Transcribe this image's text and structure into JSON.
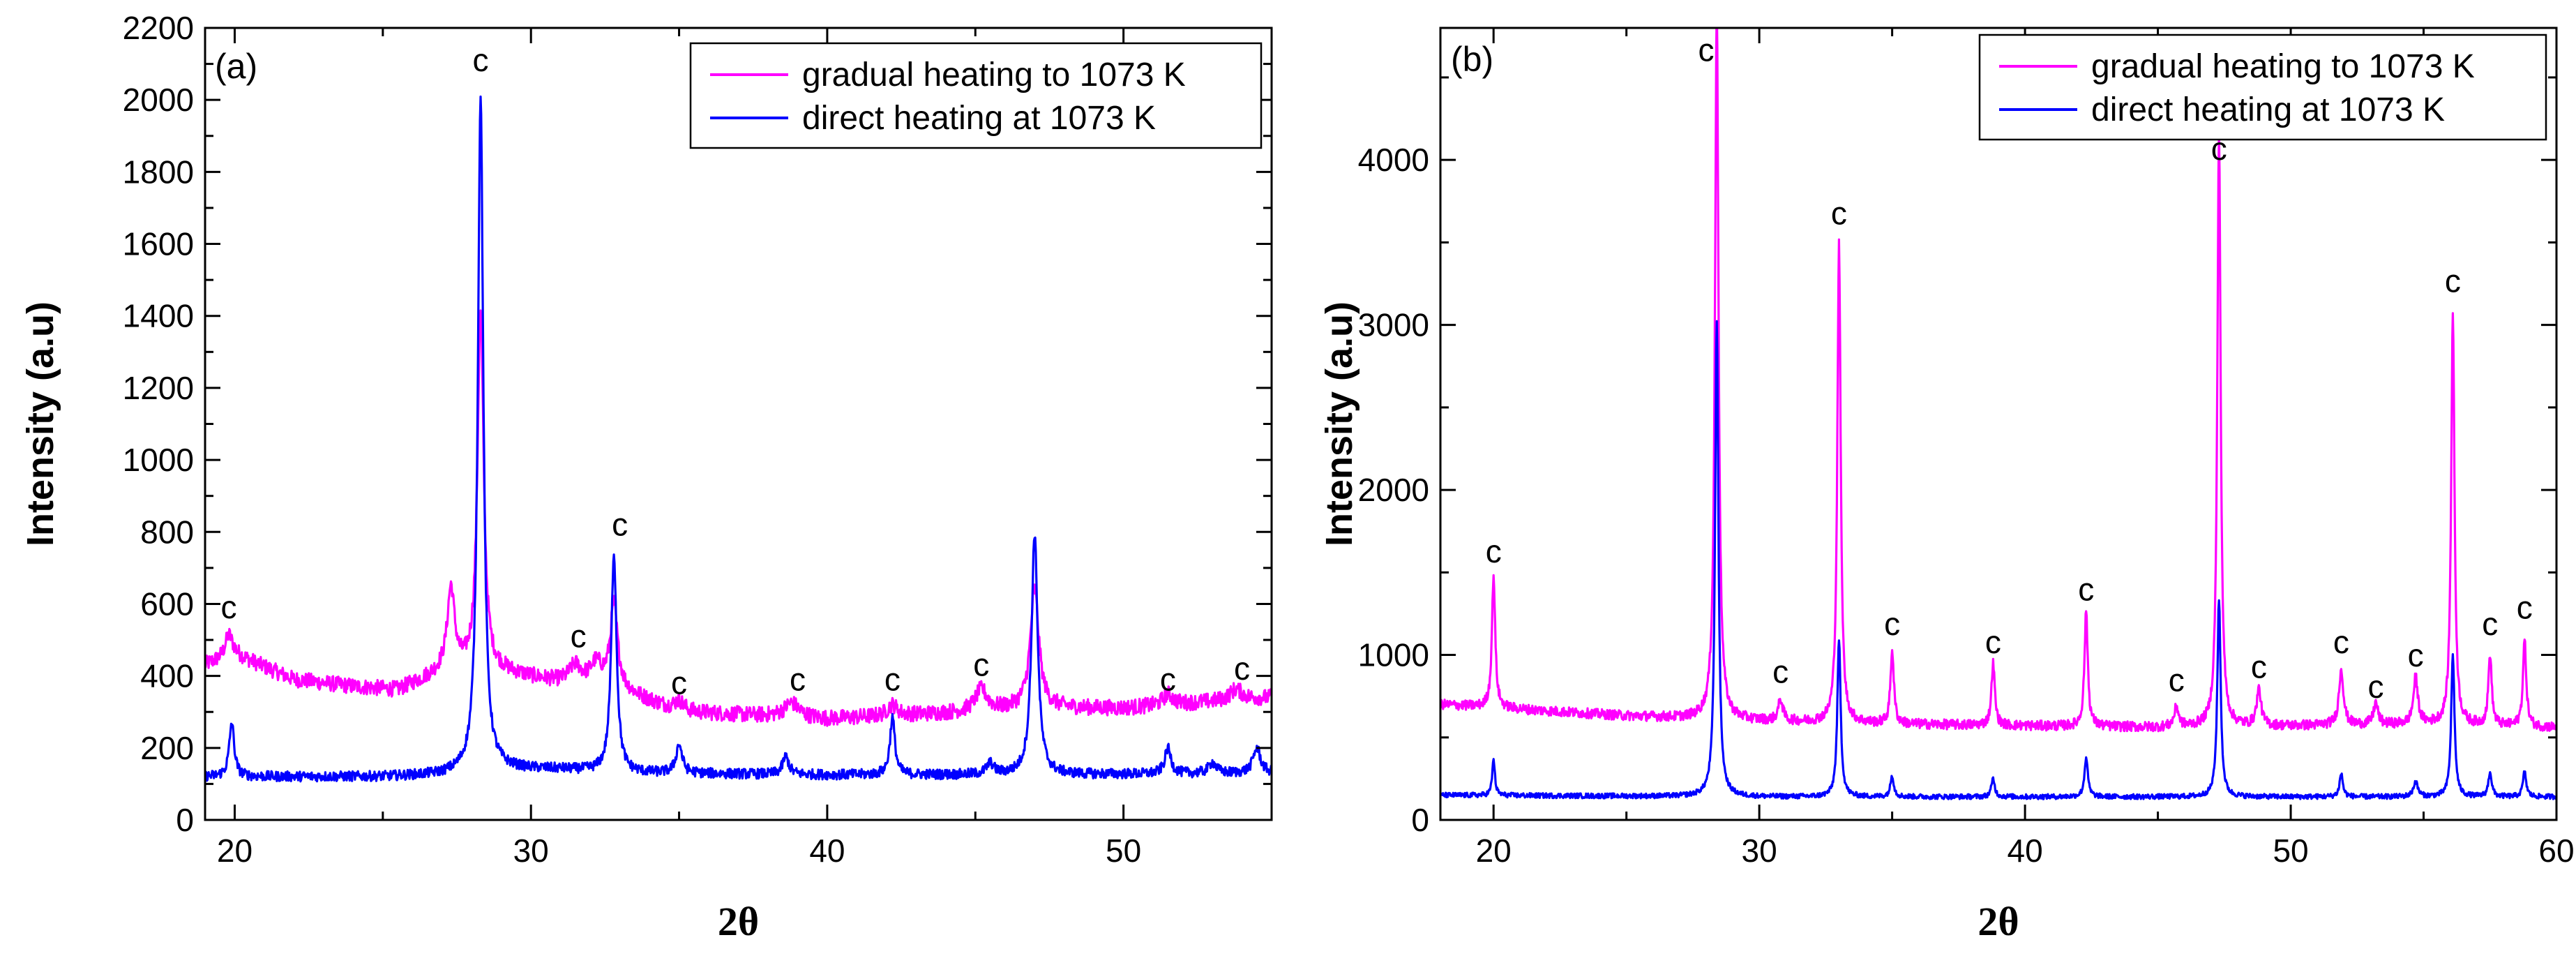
{
  "chart_data": [
    {
      "type": "line",
      "panel_label": "(a)",
      "xlabel": "2θ",
      "ylabel": "Intensity (a.u)",
      "xlim": [
        19,
        55
      ],
      "ylim": [
        0,
        2200
      ],
      "xticks": [
        20,
        30,
        40,
        50
      ],
      "yticks": [
        0,
        200,
        400,
        600,
        800,
        1000,
        1200,
        1400,
        1600,
        1800,
        2000,
        2200
      ],
      "legend_position": "top-right",
      "series": [
        {
          "name": "gradual heating to 1073 K",
          "color": "#ff00ff",
          "baseline": [
            [
              19,
              430
            ],
            [
              20,
              460
            ],
            [
              22,
              390
            ],
            [
              24,
              370
            ],
            [
              25.5,
              360
            ],
            [
              27,
              410
            ],
            [
              29,
              410
            ],
            [
              31,
              380
            ],
            [
              33,
              360
            ],
            [
              35,
              300
            ],
            [
              40,
              280
            ],
            [
              45,
              300
            ],
            [
              47,
              310
            ],
            [
              50,
              310
            ],
            [
              55,
              340
            ]
          ],
          "peaks": [
            [
              19.8,
              60,
              0.3
            ],
            [
              27.3,
              230,
              0.3
            ],
            [
              28.3,
              1000,
              0.25
            ],
            [
              31.5,
              50,
              0.5
            ],
            [
              32.2,
              60,
              0.5
            ],
            [
              32.8,
              230,
              0.3
            ],
            [
              35,
              30,
              0.4
            ],
            [
              38.8,
              40,
              0.6
            ],
            [
              42.2,
              30,
              0.4
            ],
            [
              45.2,
              60,
              0.5
            ],
            [
              47,
              330,
              0.35
            ],
            [
              51.5,
              30,
              0.4
            ],
            [
              53.8,
              30,
              0.5
            ]
          ],
          "noise": 22
        },
        {
          "name": "direct heating at 1073 K",
          "color": "#0000ff",
          "baseline": [
            [
              19,
              120
            ],
            [
              25,
              120
            ],
            [
              27,
              125
            ],
            [
              29,
              140
            ],
            [
              31,
              140
            ],
            [
              33,
              130
            ],
            [
              40,
              125
            ],
            [
              47,
              125
            ],
            [
              55,
              130
            ]
          ],
          "peaks": [
            [
              19.9,
              150,
              0.2
            ],
            [
              28.3,
              1880,
              0.22
            ],
            [
              32.8,
              610,
              0.22
            ],
            [
              35,
              80,
              0.25
            ],
            [
              38.6,
              50,
              0.25
            ],
            [
              42.2,
              160,
              0.2
            ],
            [
              45.5,
              30,
              0.3
            ],
            [
              47,
              670,
              0.25
            ],
            [
              51.5,
              70,
              0.25
            ],
            [
              53,
              30,
              0.3
            ],
            [
              54.5,
              70,
              0.3
            ]
          ],
          "noise": 14
        }
      ],
      "annotations": [
        {
          "text": "c",
          "x": 19.8,
          "y": 560
        },
        {
          "text": "c",
          "x": 28.3,
          "y": 2080
        },
        {
          "text": "c",
          "x": 31.6,
          "y": 480
        },
        {
          "text": "c",
          "x": 33.0,
          "y": 790
        },
        {
          "text": "c",
          "x": 35.0,
          "y": 350
        },
        {
          "text": "c",
          "x": 39.0,
          "y": 360
        },
        {
          "text": "c",
          "x": 42.2,
          "y": 360
        },
        {
          "text": "c",
          "x": 45.2,
          "y": 400
        },
        {
          "text": "c",
          "x": 51.5,
          "y": 360
        },
        {
          "text": "c",
          "x": 54.0,
          "y": 390
        }
      ]
    },
    {
      "type": "line",
      "panel_label": "(b)",
      "xlabel": "2θ",
      "ylabel": "Intensity (a.u)",
      "xlim": [
        18,
        60
      ],
      "ylim": [
        0,
        4800
      ],
      "xticks": [
        20,
        30,
        40,
        50,
        60
      ],
      "yticks": [
        0,
        1000,
        2000,
        3000,
        4000
      ],
      "legend_position": "top-right",
      "series": [
        {
          "name": "gradual heating to 1073 K",
          "color": "#ff00ff",
          "baseline": [
            [
              18,
              700
            ],
            [
              25,
              630
            ],
            [
              30,
              600
            ],
            [
              35,
              580
            ],
            [
              40,
              570
            ],
            [
              45,
              560
            ],
            [
              50,
              570
            ],
            [
              55,
              580
            ],
            [
              60,
              560
            ]
          ],
          "peaks": [
            [
              20,
              800,
              0.15
            ],
            [
              28.4,
              4300,
              0.16
            ],
            [
              30.8,
              130,
              0.2
            ],
            [
              33,
              2900,
              0.15
            ],
            [
              35,
              450,
              0.15
            ],
            [
              38.8,
              380,
              0.15
            ],
            [
              42.3,
              700,
              0.15
            ],
            [
              45.7,
              120,
              0.2
            ],
            [
              47.3,
              3600,
              0.15
            ],
            [
              48.8,
              220,
              0.2
            ],
            [
              51.9,
              340,
              0.2
            ],
            [
              53.2,
              130,
              0.2
            ],
            [
              54.7,
              280,
              0.2
            ],
            [
              56.1,
              2500,
              0.15
            ],
            [
              57.5,
              430,
              0.15
            ],
            [
              58.8,
              520,
              0.15
            ]
          ],
          "noise": 30
        },
        {
          "name": "direct heating at 1073 K",
          "color": "#0000ff",
          "baseline": [
            [
              18,
              150
            ],
            [
              30,
              140
            ],
            [
              40,
              140
            ],
            [
              50,
              140
            ],
            [
              60,
              140
            ]
          ],
          "peaks": [
            [
              20,
              220,
              0.12
            ],
            [
              28.4,
              2880,
              0.15
            ],
            [
              33,
              950,
              0.15
            ],
            [
              35,
              130,
              0.15
            ],
            [
              38.8,
              110,
              0.15
            ],
            [
              42.3,
              240,
              0.15
            ],
            [
              47.3,
              1200,
              0.15
            ],
            [
              51.9,
              140,
              0.15
            ],
            [
              54.7,
              90,
              0.2
            ],
            [
              56.1,
              860,
              0.15
            ],
            [
              57.5,
              150,
              0.15
            ],
            [
              58.8,
              150,
              0.15
            ]
          ],
          "noise": 15
        }
      ],
      "annotations": [
        {
          "text": "c",
          "x": 20.0,
          "y": 1560
        },
        {
          "text": "c",
          "x": 28.0,
          "y": 4600
        },
        {
          "text": "c",
          "x": 30.8,
          "y": 830
        },
        {
          "text": "c",
          "x": 33.0,
          "y": 3610
        },
        {
          "text": "c",
          "x": 35.0,
          "y": 1120
        },
        {
          "text": "c",
          "x": 38.8,
          "y": 1010
        },
        {
          "text": "c",
          "x": 42.3,
          "y": 1330
        },
        {
          "text": "c",
          "x": 45.7,
          "y": 780
        },
        {
          "text": "c",
          "x": 47.3,
          "y": 4000
        },
        {
          "text": "c",
          "x": 48.8,
          "y": 860
        },
        {
          "text": "c",
          "x": 51.9,
          "y": 1010
        },
        {
          "text": "c",
          "x": 53.2,
          "y": 740
        },
        {
          "text": "c",
          "x": 54.7,
          "y": 930
        },
        {
          "text": "c",
          "x": 56.1,
          "y": 3200
        },
        {
          "text": "c",
          "x": 57.5,
          "y": 1120
        },
        {
          "text": "c",
          "x": 58.8,
          "y": 1220
        }
      ]
    }
  ]
}
